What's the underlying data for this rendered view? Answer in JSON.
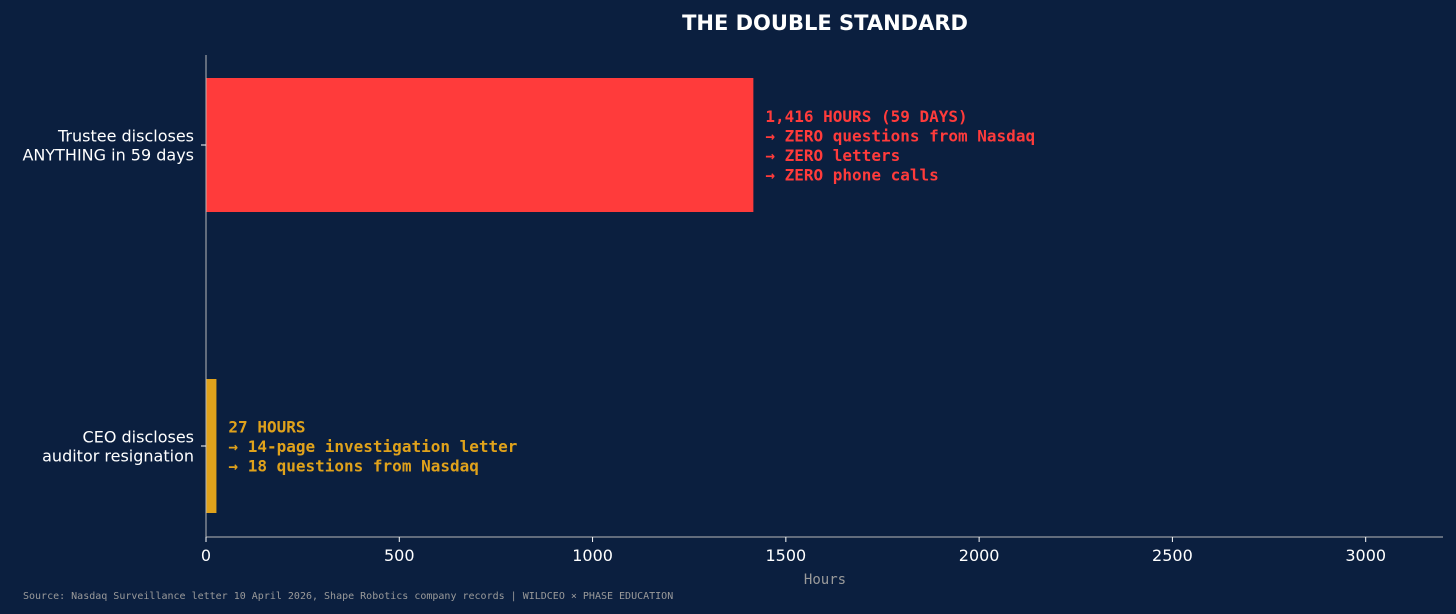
{
  "chart_data": {
    "type": "bar",
    "orientation": "horizontal",
    "title": "THE DOUBLE STANDARD",
    "xlabel": "Hours",
    "ylabel": "",
    "xlim": [
      0,
      3200
    ],
    "xticks": [
      0,
      500,
      1000,
      1500,
      2000,
      2500,
      3000
    ],
    "grid": false,
    "categories": [
      [
        "Trustee discloses",
        "ANYTHING in 59 days"
      ],
      [
        "CEO discloses",
        "auditor resignation"
      ]
    ],
    "values": [
      1416,
      27
    ],
    "colors": [
      "#ff3b3b",
      "#e0a21b"
    ],
    "annotations": [
      [
        "1,416 HOURS (59 DAYS)",
        "→ ZERO questions from Nasdaq",
        "→ ZERO letters",
        "→ ZERO phone calls"
      ],
      [
        "27 HOURS",
        "→ 14-page investigation letter",
        "→ 18 questions from Nasdaq"
      ]
    ]
  },
  "source": "Source: Nasdaq Surveillance letter 10 April 2026, Shape Robotics company records | WILDCEO × PHASE EDUCATION",
  "colors": {
    "background": "#0b1f3f",
    "text": "#ffffff",
    "muted": "#9a9a9a",
    "axis": "#b8b8b8"
  }
}
